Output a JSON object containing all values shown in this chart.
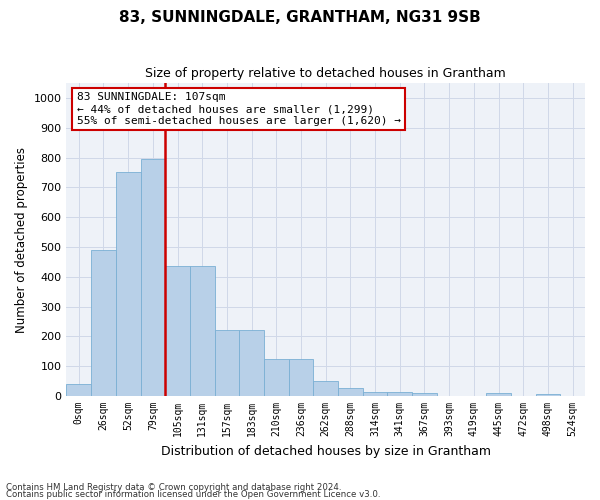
{
  "title": "83, SUNNINGDALE, GRANTHAM, NG31 9SB",
  "subtitle": "Size of property relative to detached houses in Grantham",
  "xlabel": "Distribution of detached houses by size in Grantham",
  "ylabel": "Number of detached properties",
  "categories": [
    "0sqm",
    "26sqm",
    "52sqm",
    "79sqm",
    "105sqm",
    "131sqm",
    "157sqm",
    "183sqm",
    "210sqm",
    "236sqm",
    "262sqm",
    "288sqm",
    "314sqm",
    "341sqm",
    "367sqm",
    "393sqm",
    "419sqm",
    "445sqm",
    "472sqm",
    "498sqm",
    "524sqm"
  ],
  "bar_values": [
    40,
    490,
    750,
    795,
    435,
    435,
    220,
    220,
    125,
    125,
    50,
    28,
    12,
    12,
    10,
    0,
    0,
    10,
    0,
    8,
    0
  ],
  "property_line_index": 4,
  "annotation_text": "83 SUNNINGDALE: 107sqm\n← 44% of detached houses are smaller (1,299)\n55% of semi-detached houses are larger (1,620) →",
  "annotation_box_color": "#ffffff",
  "annotation_border_color": "#cc0000",
  "bar_color": "#b8d0e8",
  "bar_edge_color": "#7aafd4",
  "line_color": "#cc0000",
  "grid_color": "#d0d8e8",
  "bg_color": "#eef2f8",
  "footnote1": "Contains HM Land Registry data © Crown copyright and database right 2024.",
  "footnote2": "Contains public sector information licensed under the Open Government Licence v3.0.",
  "ylim": [
    0,
    1050
  ],
  "yticks": [
    0,
    100,
    200,
    300,
    400,
    500,
    600,
    700,
    800,
    900,
    1000
  ]
}
